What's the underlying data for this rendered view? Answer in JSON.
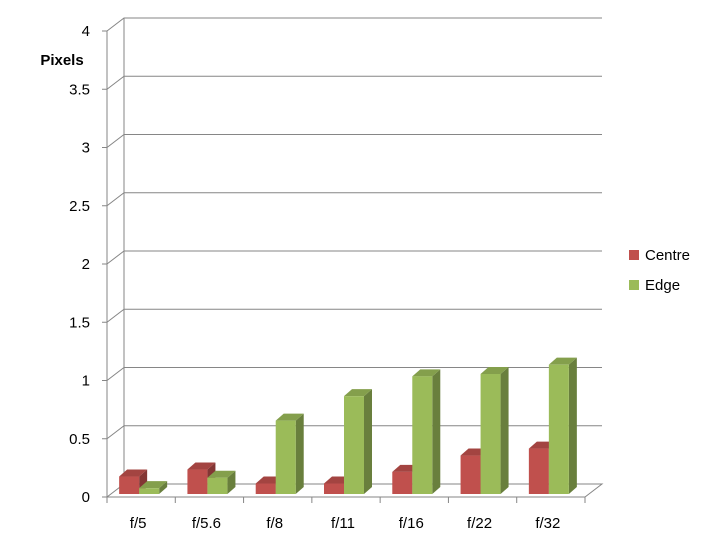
{
  "chart_data": {
    "type": "bar",
    "title": "",
    "ylabel": "Pixels",
    "xlabel": "",
    "ylim": [
      0,
      4
    ],
    "yticks": [
      "0",
      "0.5",
      "1",
      "1.5",
      "2",
      "2.5",
      "3",
      "3.5",
      "4"
    ],
    "categories": [
      "f/5",
      "f/5.6",
      "f/8",
      "f/11",
      "f/16",
      "f/22",
      "f/32"
    ],
    "series": [
      {
        "name": "Centre",
        "values": [
          0.15,
          0.21,
          0.09,
          0.09,
          0.19,
          0.33,
          0.39
        ],
        "color": "#C0504D"
      },
      {
        "name": "Edge",
        "values": [
          0.05,
          0.14,
          0.63,
          0.84,
          1.01,
          1.03,
          1.11
        ],
        "color": "#9BBB59"
      }
    ],
    "grid": true,
    "legend": "right",
    "style": "3d-clustered-column"
  }
}
